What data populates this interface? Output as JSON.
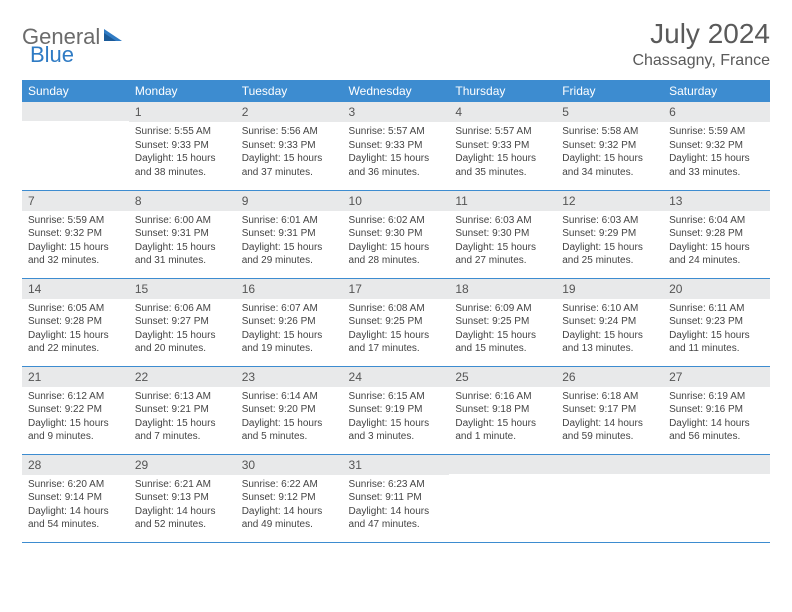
{
  "logo": {
    "part1": "General",
    "part2": "Blue"
  },
  "title": "July 2024",
  "location": "Chassagny, France",
  "colors": {
    "header_bg": "#3d8cd0",
    "header_text": "#ffffff",
    "daynum_bg": "#e8e9ea",
    "border": "#3d8cd0",
    "logo_gray": "#6b6b6b",
    "logo_blue": "#2f7bc4"
  },
  "weekdays": [
    "Sunday",
    "Monday",
    "Tuesday",
    "Wednesday",
    "Thursday",
    "Friday",
    "Saturday"
  ],
  "weeks": [
    [
      {
        "n": "",
        "sr": "",
        "ss": "",
        "dl": ""
      },
      {
        "n": "1",
        "sr": "Sunrise: 5:55 AM",
        "ss": "Sunset: 9:33 PM",
        "dl": "Daylight: 15 hours and 38 minutes."
      },
      {
        "n": "2",
        "sr": "Sunrise: 5:56 AM",
        "ss": "Sunset: 9:33 PM",
        "dl": "Daylight: 15 hours and 37 minutes."
      },
      {
        "n": "3",
        "sr": "Sunrise: 5:57 AM",
        "ss": "Sunset: 9:33 PM",
        "dl": "Daylight: 15 hours and 36 minutes."
      },
      {
        "n": "4",
        "sr": "Sunrise: 5:57 AM",
        "ss": "Sunset: 9:33 PM",
        "dl": "Daylight: 15 hours and 35 minutes."
      },
      {
        "n": "5",
        "sr": "Sunrise: 5:58 AM",
        "ss": "Sunset: 9:32 PM",
        "dl": "Daylight: 15 hours and 34 minutes."
      },
      {
        "n": "6",
        "sr": "Sunrise: 5:59 AM",
        "ss": "Sunset: 9:32 PM",
        "dl": "Daylight: 15 hours and 33 minutes."
      }
    ],
    [
      {
        "n": "7",
        "sr": "Sunrise: 5:59 AM",
        "ss": "Sunset: 9:32 PM",
        "dl": "Daylight: 15 hours and 32 minutes."
      },
      {
        "n": "8",
        "sr": "Sunrise: 6:00 AM",
        "ss": "Sunset: 9:31 PM",
        "dl": "Daylight: 15 hours and 31 minutes."
      },
      {
        "n": "9",
        "sr": "Sunrise: 6:01 AM",
        "ss": "Sunset: 9:31 PM",
        "dl": "Daylight: 15 hours and 29 minutes."
      },
      {
        "n": "10",
        "sr": "Sunrise: 6:02 AM",
        "ss": "Sunset: 9:30 PM",
        "dl": "Daylight: 15 hours and 28 minutes."
      },
      {
        "n": "11",
        "sr": "Sunrise: 6:03 AM",
        "ss": "Sunset: 9:30 PM",
        "dl": "Daylight: 15 hours and 27 minutes."
      },
      {
        "n": "12",
        "sr": "Sunrise: 6:03 AM",
        "ss": "Sunset: 9:29 PM",
        "dl": "Daylight: 15 hours and 25 minutes."
      },
      {
        "n": "13",
        "sr": "Sunrise: 6:04 AM",
        "ss": "Sunset: 9:28 PM",
        "dl": "Daylight: 15 hours and 24 minutes."
      }
    ],
    [
      {
        "n": "14",
        "sr": "Sunrise: 6:05 AM",
        "ss": "Sunset: 9:28 PM",
        "dl": "Daylight: 15 hours and 22 minutes."
      },
      {
        "n": "15",
        "sr": "Sunrise: 6:06 AM",
        "ss": "Sunset: 9:27 PM",
        "dl": "Daylight: 15 hours and 20 minutes."
      },
      {
        "n": "16",
        "sr": "Sunrise: 6:07 AM",
        "ss": "Sunset: 9:26 PM",
        "dl": "Daylight: 15 hours and 19 minutes."
      },
      {
        "n": "17",
        "sr": "Sunrise: 6:08 AM",
        "ss": "Sunset: 9:25 PM",
        "dl": "Daylight: 15 hours and 17 minutes."
      },
      {
        "n": "18",
        "sr": "Sunrise: 6:09 AM",
        "ss": "Sunset: 9:25 PM",
        "dl": "Daylight: 15 hours and 15 minutes."
      },
      {
        "n": "19",
        "sr": "Sunrise: 6:10 AM",
        "ss": "Sunset: 9:24 PM",
        "dl": "Daylight: 15 hours and 13 minutes."
      },
      {
        "n": "20",
        "sr": "Sunrise: 6:11 AM",
        "ss": "Sunset: 9:23 PM",
        "dl": "Daylight: 15 hours and 11 minutes."
      }
    ],
    [
      {
        "n": "21",
        "sr": "Sunrise: 6:12 AM",
        "ss": "Sunset: 9:22 PM",
        "dl": "Daylight: 15 hours and 9 minutes."
      },
      {
        "n": "22",
        "sr": "Sunrise: 6:13 AM",
        "ss": "Sunset: 9:21 PM",
        "dl": "Daylight: 15 hours and 7 minutes."
      },
      {
        "n": "23",
        "sr": "Sunrise: 6:14 AM",
        "ss": "Sunset: 9:20 PM",
        "dl": "Daylight: 15 hours and 5 minutes."
      },
      {
        "n": "24",
        "sr": "Sunrise: 6:15 AM",
        "ss": "Sunset: 9:19 PM",
        "dl": "Daylight: 15 hours and 3 minutes."
      },
      {
        "n": "25",
        "sr": "Sunrise: 6:16 AM",
        "ss": "Sunset: 9:18 PM",
        "dl": "Daylight: 15 hours and 1 minute."
      },
      {
        "n": "26",
        "sr": "Sunrise: 6:18 AM",
        "ss": "Sunset: 9:17 PM",
        "dl": "Daylight: 14 hours and 59 minutes."
      },
      {
        "n": "27",
        "sr": "Sunrise: 6:19 AM",
        "ss": "Sunset: 9:16 PM",
        "dl": "Daylight: 14 hours and 56 minutes."
      }
    ],
    [
      {
        "n": "28",
        "sr": "Sunrise: 6:20 AM",
        "ss": "Sunset: 9:14 PM",
        "dl": "Daylight: 14 hours and 54 minutes."
      },
      {
        "n": "29",
        "sr": "Sunrise: 6:21 AM",
        "ss": "Sunset: 9:13 PM",
        "dl": "Daylight: 14 hours and 52 minutes."
      },
      {
        "n": "30",
        "sr": "Sunrise: 6:22 AM",
        "ss": "Sunset: 9:12 PM",
        "dl": "Daylight: 14 hours and 49 minutes."
      },
      {
        "n": "31",
        "sr": "Sunrise: 6:23 AM",
        "ss": "Sunset: 9:11 PM",
        "dl": "Daylight: 14 hours and 47 minutes."
      },
      {
        "n": "",
        "sr": "",
        "ss": "",
        "dl": ""
      },
      {
        "n": "",
        "sr": "",
        "ss": "",
        "dl": ""
      },
      {
        "n": "",
        "sr": "",
        "ss": "",
        "dl": ""
      }
    ]
  ]
}
